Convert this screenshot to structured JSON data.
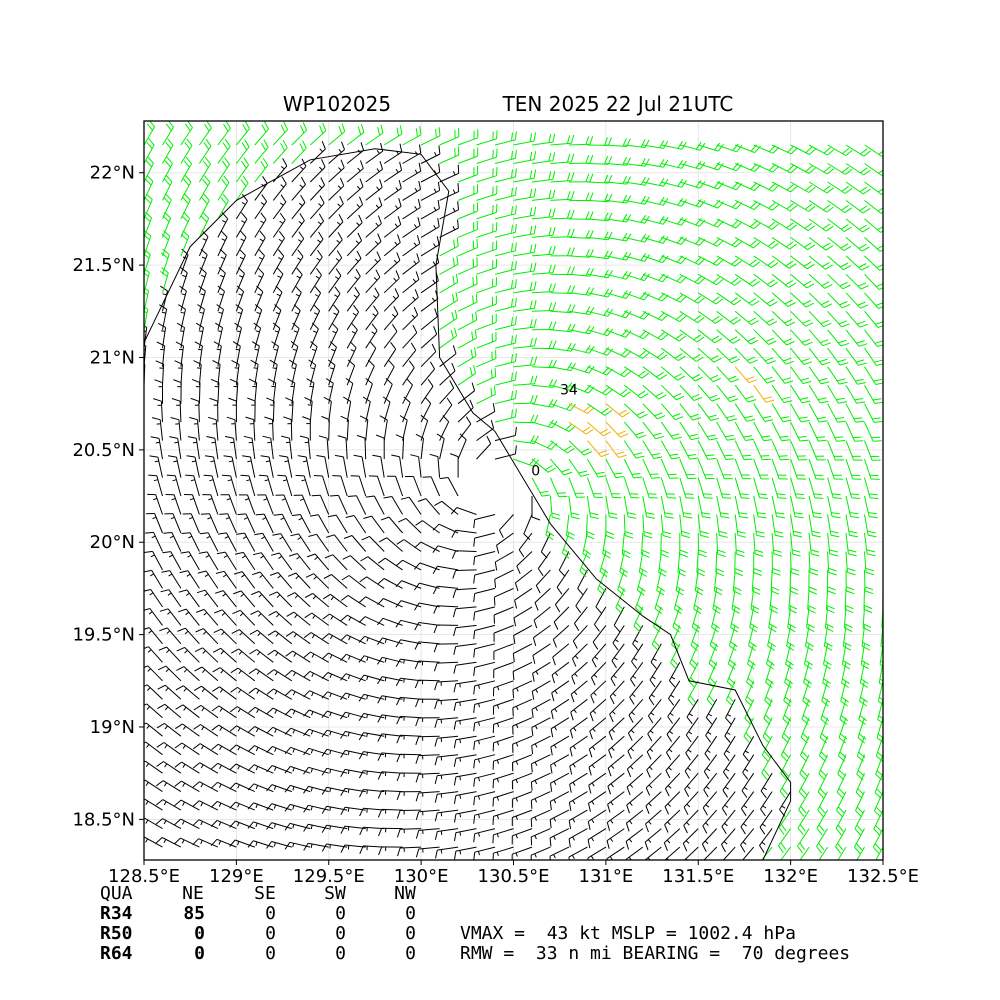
{
  "title_left": "WP102025",
  "title_right": "TEN 2025 22 Jul 21UTC",
  "chart_data": {
    "type": "wind-barb-map",
    "xlim": [
      128.5,
      132.5
    ],
    "ylim": [
      18.28,
      22.28
    ],
    "x_ticks": [
      128.5,
      129,
      129.5,
      130,
      130.5,
      131,
      131.5,
      132,
      132.5
    ],
    "x_tick_labels": [
      "128.5°E",
      "129°E",
      "129.5°E",
      "130°E",
      "130.5°E",
      "131°E",
      "131.5°E",
      "132°E",
      "132.5°E"
    ],
    "y_ticks": [
      18.5,
      19,
      19.5,
      20,
      20.5,
      21,
      21.5,
      22
    ],
    "y_tick_labels": [
      "18.5°N",
      "19°N",
      "19.5°N",
      "20°N",
      "20.5°N",
      "21°N",
      "21.5°N",
      "22°N"
    ],
    "grid": true,
    "storm": {
      "center_lon": 130.4,
      "center_lat": 20.3,
      "vmax_kt": 43,
      "mslp_hpa": 1002.4,
      "rmw_nmi": 33,
      "bearing_deg": 70
    },
    "barb_colors": {
      "below_34kt": "#000000",
      "34_to_49kt": "#00ee00",
      "50_to_63kt": "#f0b000"
    },
    "contour_labels": [
      {
        "text": "34",
        "lon": 130.8,
        "lat": 20.8
      },
      {
        "text": "0",
        "lon": 130.62,
        "lat": 20.36
      }
    ],
    "black_region_boundary": [
      [
        128.5,
        21.08
      ],
      [
        128.75,
        21.6
      ],
      [
        129.0,
        21.85
      ],
      [
        129.4,
        22.07
      ],
      [
        129.75,
        22.13
      ],
      [
        130.0,
        22.1
      ],
      [
        130.15,
        21.9
      ],
      [
        130.08,
        21.5
      ],
      [
        130.1,
        21.0
      ],
      [
        130.28,
        20.7
      ],
      [
        130.4,
        20.6
      ],
      [
        130.55,
        20.35
      ],
      [
        130.7,
        20.1
      ],
      [
        130.95,
        19.8
      ],
      [
        131.2,
        19.6
      ],
      [
        131.35,
        19.5
      ],
      [
        131.45,
        19.25
      ],
      [
        131.7,
        19.2
      ],
      [
        131.85,
        18.9
      ],
      [
        132.0,
        18.7
      ],
      [
        132.0,
        18.6
      ],
      [
        131.85,
        18.28
      ]
    ],
    "table": {
      "header": [
        "QUA",
        "NE",
        "SE",
        "SW",
        "NW"
      ],
      "rows": [
        {
          "label": "R34",
          "values": [
            "85",
            "0",
            "0",
            "0"
          ]
        },
        {
          "label": "R50",
          "values": [
            "0",
            "0",
            "0",
            "0"
          ]
        },
        {
          "label": "R64",
          "values": [
            "0",
            "0",
            "0",
            "0"
          ]
        }
      ]
    }
  },
  "stats": {
    "line1": "VMAX =  43 kt MSLP = 1002.4 hPa",
    "line2": "RMW =  33 n mi BEARING =  70 degrees"
  }
}
